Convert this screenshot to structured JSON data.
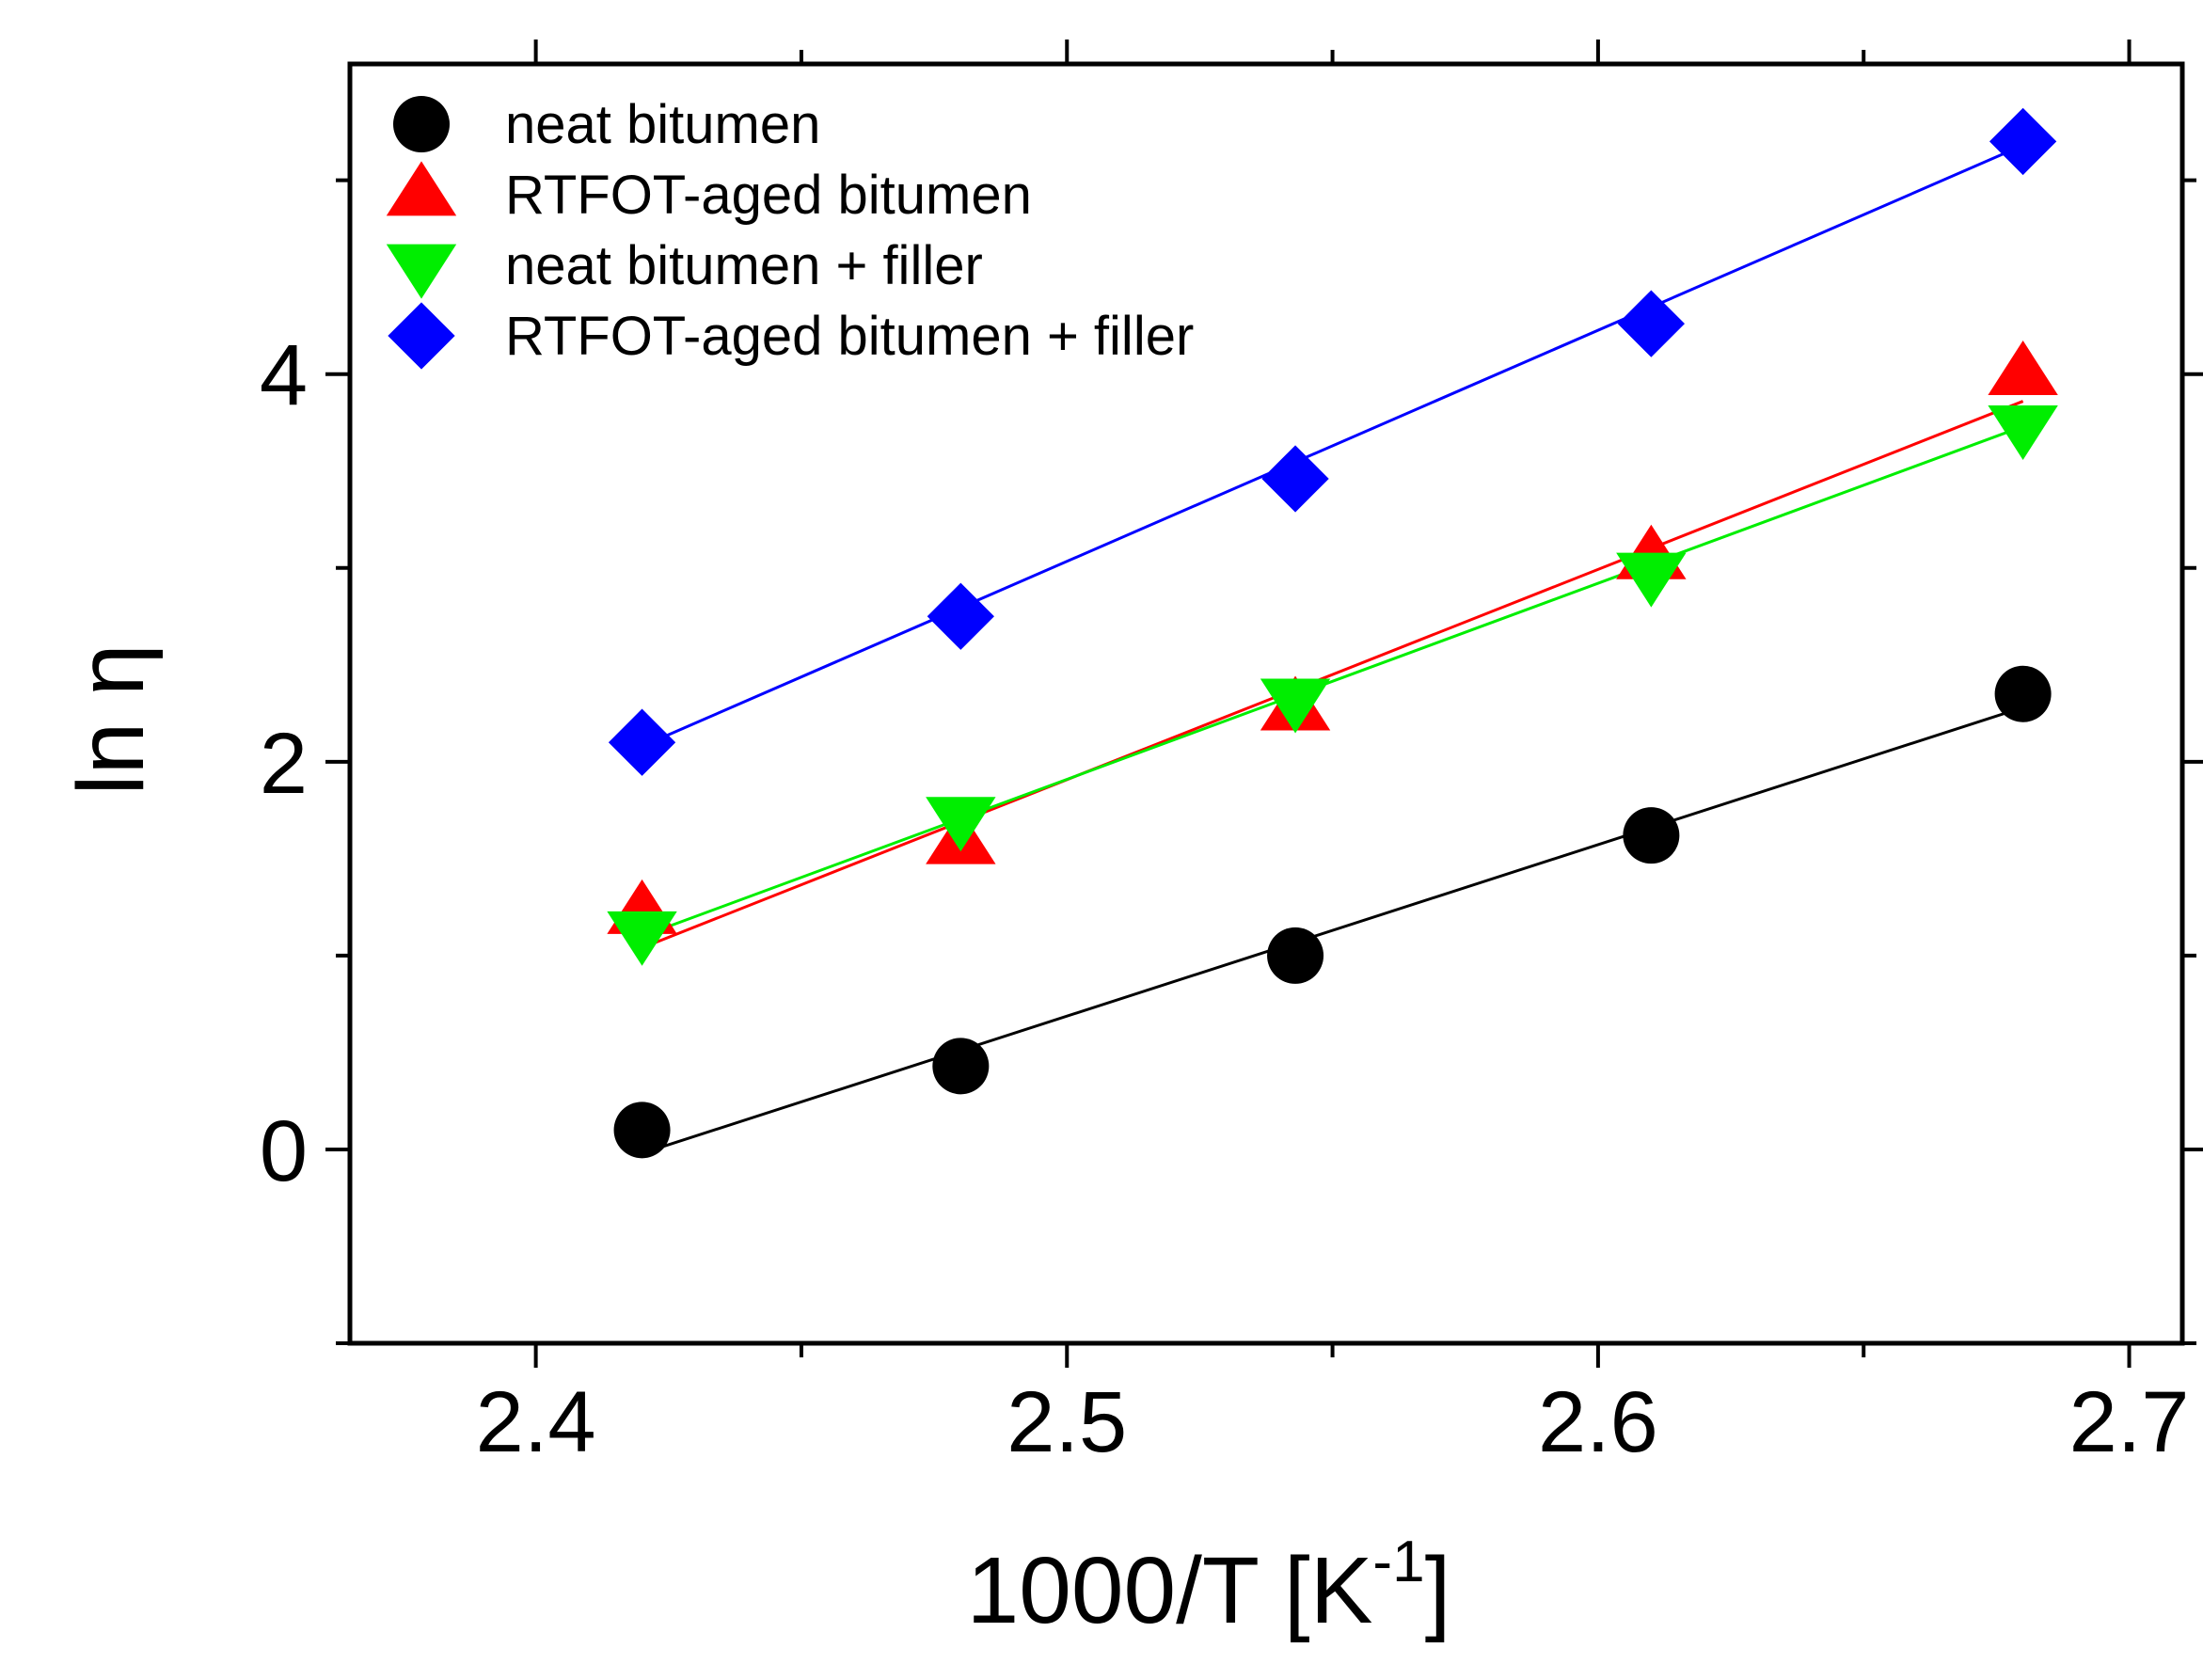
{
  "chart_data": {
    "type": "scatter",
    "title": "",
    "xlabel": "1000/T [K",
    "xlabel_superscript": "-1",
    "xlabel_suffix": "]",
    "ylabel": "ln η",
    "xlim": [
      2.365,
      2.71
    ],
    "ylim": [
      -1.0,
      5.6
    ],
    "x_ticks": [
      2.4,
      2.5,
      2.6,
      2.7
    ],
    "x_tick_labels": [
      "2.4",
      "2.5",
      "2.6",
      "2.7"
    ],
    "y_ticks": [
      0,
      2,
      4
    ],
    "y_tick_labels": [
      "0",
      "2",
      "4"
    ],
    "y_minor_ticks": [
      -1,
      1,
      3,
      5
    ],
    "legend_position": "top-left",
    "series": [
      {
        "name": "neat bitumen",
        "marker": "circle",
        "color": "#000000",
        "x": [
          2.42,
          2.48,
          2.543,
          2.61,
          2.68
        ],
        "y": [
          0.1,
          0.43,
          1.0,
          1.62,
          2.35
        ],
        "fit": {
          "x": [
            2.42,
            2.68
          ],
          "y": [
            -0.02,
            2.28
          ]
        }
      },
      {
        "name": "RTFOT-aged bitumen",
        "marker": "triangle-up",
        "color": "#ff0000",
        "x": [
          2.42,
          2.48,
          2.543,
          2.61,
          2.68
        ],
        "y": [
          1.22,
          1.58,
          2.27,
          3.05,
          4.0
        ],
        "fit": {
          "x": [
            2.42,
            2.68
          ],
          "y": [
            1.04,
            3.86
          ]
        }
      },
      {
        "name": "neat bitumen + filler",
        "marker": "triangle-down",
        "color": "#00ee00",
        "x": [
          2.42,
          2.48,
          2.543,
          2.61,
          2.68
        ],
        "y": [
          1.12,
          1.71,
          2.32,
          2.97,
          3.73
        ],
        "fit": {
          "x": [
            2.42,
            2.68
          ],
          "y": [
            1.1,
            3.73
          ]
        }
      },
      {
        "name": "RTFOT-aged bitumen + filler",
        "marker": "diamond",
        "color": "#0000ff",
        "x": [
          2.42,
          2.48,
          2.543,
          2.61,
          2.68
        ],
        "y": [
          2.1,
          2.75,
          3.46,
          4.26,
          5.2
        ],
        "fit": {
          "x": [
            2.42,
            2.68
          ],
          "y": [
            2.08,
            5.18
          ]
        }
      }
    ]
  }
}
